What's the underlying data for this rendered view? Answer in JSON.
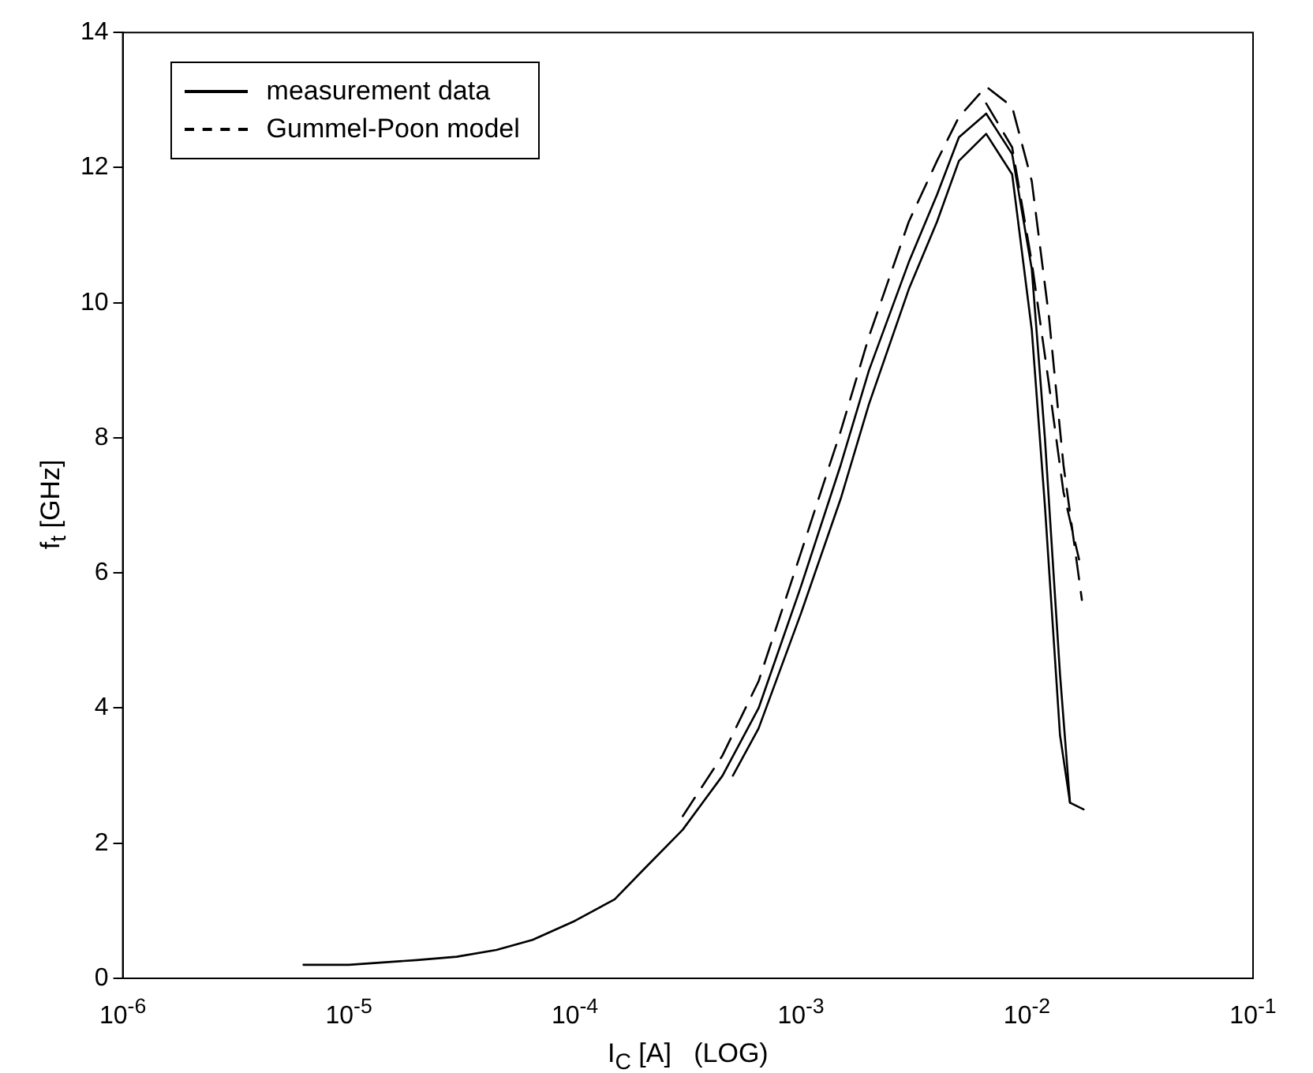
{
  "chart_data": {
    "type": "line",
    "xlabel": "I$_{C}$ [A]   (LOG)",
    "ylabel": "f$_{t}$ [GHz]",
    "log": "x",
    "xlim": [
      1e-06,
      0.1
    ],
    "xticks": [
      {
        "value": 1e-06,
        "label": "10$^{-6}$"
      },
      {
        "value": 1e-05,
        "label": "10$^{-5}$"
      },
      {
        "value": 0.0001,
        "label": "10$^{-4}$"
      },
      {
        "value": 0.001,
        "label": "10$^{-3}$"
      },
      {
        "value": 0.01,
        "label": "10$^{-2}$"
      },
      {
        "value": 0.1,
        "label": "10$^{-1}$"
      }
    ],
    "ylim": [
      0,
      14
    ],
    "yticks": [
      0,
      2,
      4,
      6,
      8,
      10,
      12,
      14
    ],
    "grid": false,
    "legend": "top left",
    "marker": "none",
    "series": [
      {
        "name": "measurement data",
        "color": "#000000",
        "line_style": "solid",
        "x": [
          6.3e-06,
          1e-05,
          2e-05,
          3e-05,
          4.5e-05,
          6.5e-05,
          0.0001,
          0.00015,
          0.0002,
          0.0003,
          0.00045,
          0.00065,
          0.001,
          0.0015,
          0.002,
          0.003,
          0.004,
          0.005,
          0.0066,
          0.0086,
          0.0105,
          0.012,
          0.014,
          0.0155,
          0.0178
        ],
        "values": [
          0.2,
          0.2,
          0.27,
          0.32,
          0.42,
          0.57,
          0.85,
          1.17,
          1.6,
          2.2,
          3.0,
          4.0,
          5.8,
          7.6,
          9.0,
          10.6,
          11.6,
          12.45,
          12.8,
          12.2,
          10.5,
          8.0,
          4.5,
          2.6,
          2.5
        ]
      },
      {
        "color": "#000000",
        "line_style": "solid",
        "x": [
          0.0005,
          0.00065,
          0.001,
          0.0015,
          0.002,
          0.003,
          0.004,
          0.005,
          0.0066,
          0.0086,
          0.0105,
          0.012,
          0.014,
          0.0155
        ],
        "values": [
          3.0,
          3.7,
          5.4,
          7.1,
          8.5,
          10.2,
          11.2,
          12.1,
          12.5,
          11.9,
          9.6,
          7.0,
          3.6,
          2.6
        ]
      },
      {
        "name": "Gummel-Poon model",
        "color": "#000000",
        "line_style": "dashed",
        "x": [
          0.0003,
          0.00045,
          0.00065,
          0.001,
          0.0015,
          0.002,
          0.003,
          0.004,
          0.005,
          0.0066,
          0.0086,
          0.0105,
          0.0125,
          0.0145,
          0.0175
        ],
        "values": [
          2.4,
          3.3,
          4.4,
          6.3,
          8.1,
          9.5,
          11.2,
          12.1,
          12.75,
          13.2,
          12.9,
          11.8,
          9.8,
          7.6,
          5.6
        ]
      },
      {
        "color": "#000000",
        "line_style": "dashed",
        "x": [
          0.0066,
          0.0086,
          0.0105,
          0.0125,
          0.0145,
          0.017
        ],
        "values": [
          12.95,
          12.3,
          10.6,
          8.8,
          7.2,
          6.2
        ]
      }
    ]
  }
}
